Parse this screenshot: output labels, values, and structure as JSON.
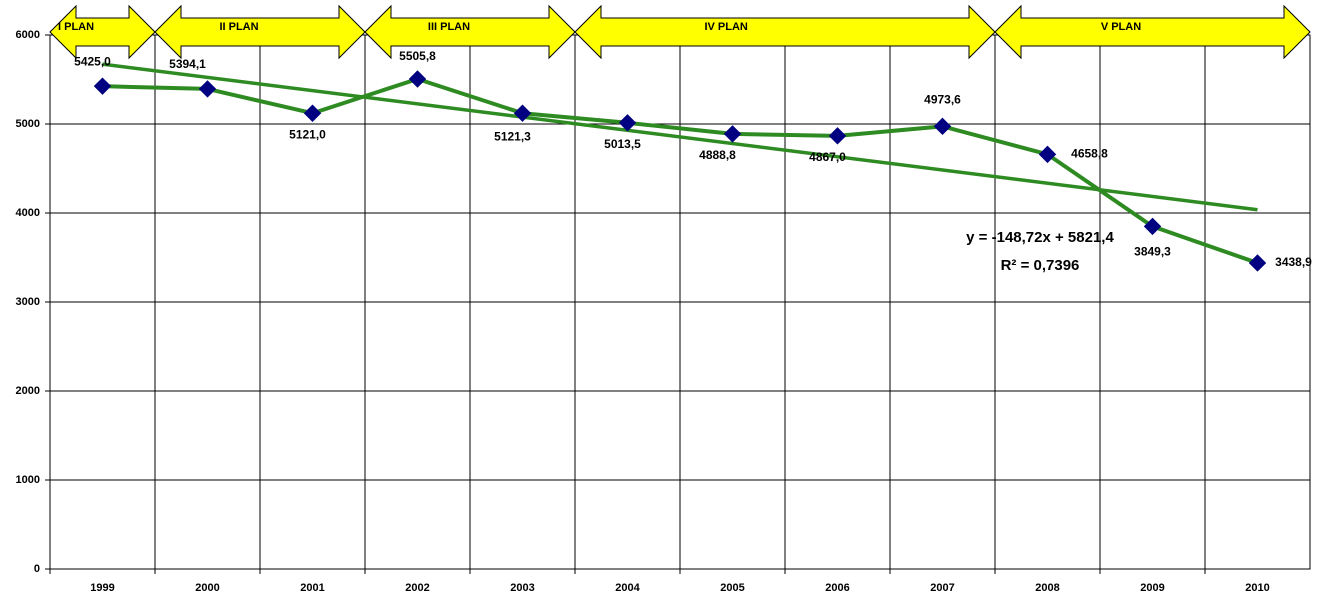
{
  "chart_data": {
    "type": "line",
    "categories": [
      "1999",
      "2000",
      "2001",
      "2002",
      "2003",
      "2004",
      "2005",
      "2006",
      "2007",
      "2008",
      "2009",
      "2010"
    ],
    "series": [
      {
        "color": "#2e8b22",
        "marker_color": "#000080",
        "values": [
          5425.0,
          5394.1,
          5121.0,
          5505.8,
          5121.3,
          5013.5,
          4888.8,
          4867.0,
          4973.6,
          4658.8,
          3849.3,
          3438.9
        ],
        "value_labels": [
          "5425,0",
          "5394,1",
          "5121,0",
          "5505,8",
          "5121,3",
          "5013,5",
          "4888,8",
          "4867,0",
          "4973,6",
          "4658,8",
          "3849,3",
          "3438,9"
        ]
      }
    ],
    "trendline": {
      "color": "#2e8b22",
      "values": [
        5672.7,
        4036.8
      ],
      "equation": "y = -148,72x + 5821,4",
      "r_squared": "R² = 0,7396"
    },
    "plans": [
      {
        "label": "I PLAN",
        "from": 1999,
        "to": 1999
      },
      {
        "label": "II PLAN",
        "from": 2000,
        "to": 2001
      },
      {
        "label": "III PLAN",
        "from": 2002,
        "to": 2003
      },
      {
        "label": "IV PLAN",
        "from": 2004,
        "to": 2007
      },
      {
        "label": "V PLAN",
        "from": 2008,
        "to": 2010
      }
    ],
    "plan_color": "#ffff00",
    "ylim": [
      0,
      6000
    ],
    "yticks": [
      0,
      1000,
      2000,
      3000,
      4000,
      5000,
      6000
    ],
    "grid": true
  }
}
